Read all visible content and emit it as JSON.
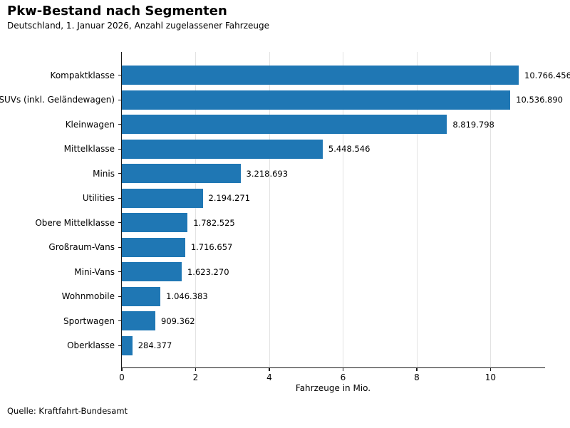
{
  "header": {
    "title": "Pkw-Bestand nach Segmenten",
    "subtitle": "Deutschland, 1. Januar 2026, Anzahl zugelassener Fahrzeuge"
  },
  "footer": {
    "source": "Quelle: Kraftfahrt-Bundesamt"
  },
  "colors": {
    "bar": "#1f77b4",
    "grid": "#e3e3e3",
    "axis": "#1a1a1a",
    "text": "#000000"
  },
  "chart_data": {
    "type": "bar",
    "orientation": "horizontal",
    "title": "Pkw-Bestand nach Segmenten",
    "subtitle": "Deutschland, 1. Januar 2026, Anzahl zugelassener Fahrzeuge",
    "categories": [
      "Kompaktklasse",
      "SUVs (inkl. Geländewagen)",
      "Kleinwagen",
      "Mittelklasse",
      "Minis",
      "Utilities",
      "Obere Mittelklasse",
      "Großraum-Vans",
      "Mini-Vans",
      "Wohnmobile",
      "Sportwagen",
      "Oberklasse"
    ],
    "values": [
      10766456,
      10536890,
      8819798,
      5448546,
      3218693,
      2194271,
      1782525,
      1716657,
      1623270,
      1046383,
      909362,
      284377
    ],
    "value_labels": [
      "10.766.456",
      "10.536.890",
      "8.819.798",
      "5.448.546",
      "3.218.693",
      "2.194.271",
      "1.782.525",
      "1.716.657",
      "1.623.270",
      "1.046.383",
      "909.362",
      "284.377"
    ],
    "xlabel": "Fahrzeuge in Mio.",
    "x_ticks": [
      0,
      2,
      4,
      6,
      8,
      10
    ],
    "xlim": [
      0,
      11.5
    ],
    "unit_divisor": 1000000,
    "grid": "vertical-only",
    "legend": "none",
    "source": "Quelle: Kraftfahrt-Bundesamt"
  }
}
